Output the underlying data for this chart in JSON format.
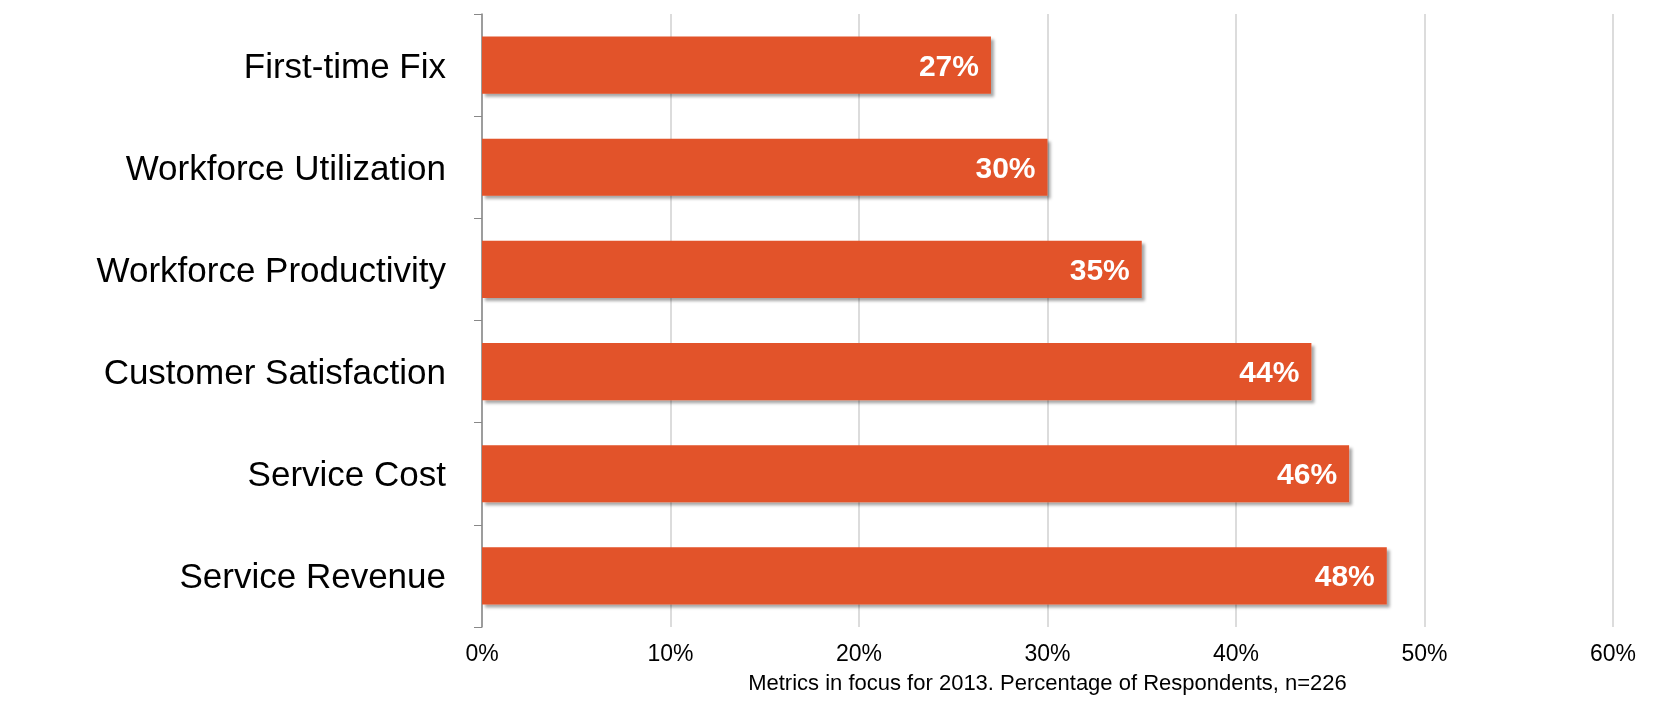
{
  "chart_data": {
    "type": "bar",
    "orientation": "horizontal",
    "xlabel": "Metrics in focus for 2013. Percentage of Respondents, n=226",
    "categories": [
      "First-time Fix",
      "Workforce Utilization",
      "Workforce Productivity",
      "Customer Satisfaction",
      "Service Cost",
      "Service Revenue"
    ],
    "values": [
      27,
      30,
      35,
      44,
      46,
      48
    ],
    "value_labels": [
      "27%",
      "30%",
      "35%",
      "44%",
      "46%",
      "48%"
    ],
    "color": "#e2522a",
    "xlim": [
      0,
      60
    ],
    "xticks": [
      {
        "value": 0,
        "label": "0%"
      },
      {
        "value": 10,
        "label": "10%"
      },
      {
        "value": 20,
        "label": "20%"
      },
      {
        "value": 30,
        "label": "30%"
      },
      {
        "value": 40,
        "label": "40%"
      },
      {
        "value": 50,
        "label": "50%"
      },
      {
        "value": 60,
        "label": "60%"
      }
    ],
    "grid": "x"
  }
}
